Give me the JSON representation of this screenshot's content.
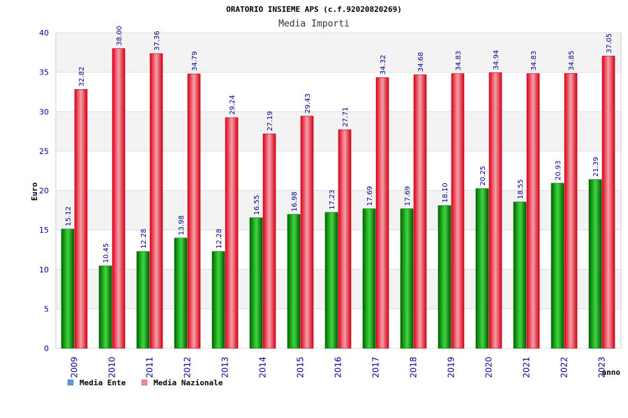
{
  "chart_data": {
    "type": "bar",
    "title": "ORATORIO INSIEME APS (c.f.92020820269)",
    "subtitle": "Media Importi",
    "ylabel": "Euro",
    "xlabel": "anno",
    "ylim": [
      0,
      40
    ],
    "yticks": [
      0,
      5,
      10,
      15,
      20,
      25,
      30,
      35,
      40
    ],
    "categories": [
      "2009",
      "2010",
      "2011",
      "2012",
      "2013",
      "2014",
      "2015",
      "2016",
      "2017",
      "2018",
      "2019",
      "2020",
      "2021",
      "2022",
      "2023"
    ],
    "series": [
      {
        "name": "Media Ente",
        "color": "#00a000",
        "values": [
          15.12,
          10.45,
          12.28,
          13.98,
          12.28,
          16.55,
          16.98,
          17.23,
          17.69,
          17.69,
          18.1,
          20.25,
          18.55,
          20.93,
          21.39
        ],
        "labels": [
          "15.12",
          "10.45",
          "12.28",
          "13.98",
          "12.28",
          "16.55",
          "16.98",
          "17.23",
          "17.69",
          "17.69",
          "18.10",
          "20.25",
          "18.55",
          "20.93",
          "21.39"
        ]
      },
      {
        "name": "Media Nazionale",
        "color": "#e01020",
        "values": [
          32.82,
          38.0,
          37.36,
          34.79,
          29.24,
          27.19,
          29.43,
          27.71,
          34.32,
          34.68,
          34.83,
          34.94,
          34.83,
          34.85,
          37.05
        ],
        "labels": [
          "32.82",
          "38.00",
          "37.36",
          "34.79",
          "29.24",
          "27.19",
          "29.43",
          "27.71",
          "34.32",
          "34.68",
          "34.83",
          "34.94",
          "34.83",
          "34.85",
          "37.05"
        ]
      }
    ],
    "legend": [
      {
        "label": "Media Ente",
        "color": "#5b9bd5"
      },
      {
        "label": "Media Nazionale",
        "color": "#e88aa8"
      }
    ],
    "grid": true,
    "legend_position": "bottom-left"
  }
}
